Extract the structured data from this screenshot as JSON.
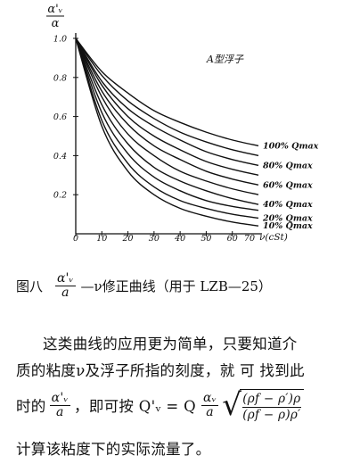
{
  "chart_data": {
    "type": "line",
    "title": "A型浮子",
    "y_axis_label_num": "α'ᵥ",
    "y_axis_label_den": "α",
    "x_axis_label": "ν(cSt)",
    "xlim": [
      0,
      70
    ],
    "ylim": [
      0,
      1.0
    ],
    "x_ticks": [
      0,
      10,
      20,
      30,
      40,
      50,
      60,
      70
    ],
    "x_tick_labels": [
      "0",
      "10",
      "20",
      "30",
      "40",
      "50",
      "60",
      "70"
    ],
    "y_ticks": [
      0.2,
      0.4,
      0.6,
      0.8,
      1.0
    ],
    "y_tick_labels": [
      "0.2",
      "0.4",
      "0.6",
      "0.8",
      "1.0"
    ],
    "series": [
      {
        "name": "100% Qmax",
        "x": [
          0,
          10,
          20,
          30,
          40,
          50,
          60,
          70
        ],
        "y": [
          1.0,
          0.83,
          0.72,
          0.63,
          0.57,
          0.52,
          0.48,
          0.45
        ]
      },
      {
        "x": [
          0,
          10,
          20,
          30,
          40,
          50,
          60,
          70
        ],
        "y": [
          1.0,
          0.81,
          0.68,
          0.59,
          0.52,
          0.47,
          0.43,
          0.4
        ]
      },
      {
        "name": "80% Qmax",
        "x": [
          0,
          10,
          20,
          30,
          40,
          50,
          60,
          70
        ],
        "y": [
          1.0,
          0.78,
          0.64,
          0.55,
          0.48,
          0.42,
          0.38,
          0.35
        ]
      },
      {
        "x": [
          0,
          10,
          20,
          30,
          40,
          50,
          60,
          70
        ],
        "y": [
          1.0,
          0.76,
          0.6,
          0.5,
          0.43,
          0.37,
          0.33,
          0.3
        ]
      },
      {
        "name": "60% Qmax",
        "x": [
          0,
          10,
          20,
          30,
          40,
          50,
          60,
          70
        ],
        "y": [
          1.0,
          0.73,
          0.56,
          0.45,
          0.38,
          0.32,
          0.28,
          0.25
        ]
      },
      {
        "x": [
          0,
          10,
          20,
          30,
          40,
          50,
          60,
          70
        ],
        "y": [
          1.0,
          0.7,
          0.51,
          0.4,
          0.32,
          0.27,
          0.23,
          0.2
        ]
      },
      {
        "name": "40% Qmax",
        "x": [
          0,
          10,
          20,
          30,
          40,
          50,
          60,
          70
        ],
        "y": [
          1.0,
          0.66,
          0.46,
          0.34,
          0.27,
          0.22,
          0.18,
          0.15
        ]
      },
      {
        "x": [
          0,
          10,
          20,
          30,
          40,
          50,
          60,
          70
        ],
        "y": [
          1.0,
          0.62,
          0.41,
          0.29,
          0.22,
          0.17,
          0.14,
          0.12
        ]
      },
      {
        "name": "20% Qmax",
        "x": [
          0,
          10,
          20,
          30,
          40,
          50,
          60,
          70
        ],
        "y": [
          1.0,
          0.58,
          0.36,
          0.24,
          0.17,
          0.13,
          0.1,
          0.08
        ]
      },
      {
        "name": "10% Qmax",
        "x": [
          0,
          10,
          20,
          30,
          40,
          50,
          60,
          70
        ],
        "y": [
          1.0,
          0.55,
          0.32,
          0.2,
          0.13,
          0.09,
          0.06,
          0.04
        ]
      }
    ],
    "grid": false,
    "legend": "inline labels at right end of curves"
  },
  "caption": {
    "prefix": "图八",
    "frac_num": "α'ᵥ",
    "frac_den": "a",
    "suffix": "—ν修正曲线（用于 LZB—25）"
  },
  "paragraph": {
    "line1": "这类曲线的应用更为简单，只要知道介",
    "line2": "质的粘度ν及浮子所指的刻度，就 可 找到此",
    "line3_start": "时的",
    "line3_frac_num": "α'ᵥ",
    "line3_frac_den": "a",
    "line3_mid": "，即可按 Q'ᵥ = Q",
    "line3_coef_num": "αᵥ",
    "line3_coef_den": "a",
    "sqrt_num": "(ρf − ρ′)ρ",
    "sqrt_den": "(ρf − ρ)ρ′",
    "line4": "计算该粘度下的实际流量了。"
  }
}
